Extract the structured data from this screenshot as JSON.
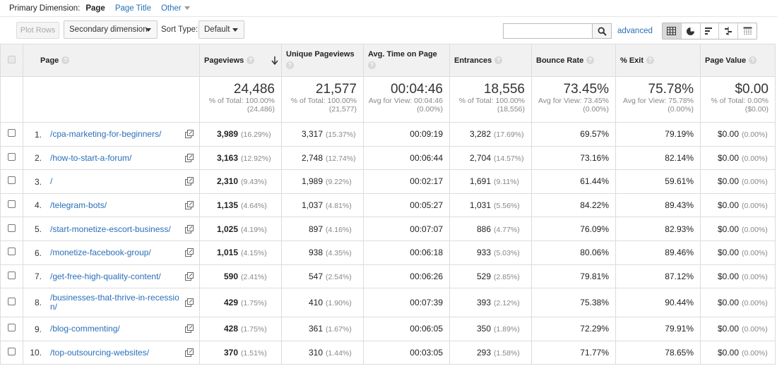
{
  "primary_dimension": {
    "label": "Primary Dimension:",
    "active": "Page",
    "option": "Page Title",
    "other": "Other"
  },
  "toolbar": {
    "plot_rows": "Plot Rows",
    "secondary_dimension": "Secondary dimension",
    "sort_type_label": "Sort Type:",
    "sort_type_value": "Default",
    "search_value": "",
    "advanced": "advanced"
  },
  "columns": {
    "page": "Page",
    "pageviews": "Pageviews",
    "unique_pageviews": "Unique Pageviews",
    "avg_time": "Avg. Time on Page",
    "entrances": "Entrances",
    "bounce_rate": "Bounce Rate",
    "exit": "% Exit",
    "page_value": "Page Value",
    "help": "?"
  },
  "totals": {
    "pageviews": {
      "value": "24,486",
      "line1": "% of Total: 100.00%",
      "line2": "(24,486)"
    },
    "unique_pageviews": {
      "value": "21,577",
      "line1": "% of Total: 100.00%",
      "line2": "(21,577)"
    },
    "avg_time": {
      "value": "00:04:46",
      "line1": "Avg for View: 00:04:46",
      "line2": "(0.00%)"
    },
    "entrances": {
      "value": "18,556",
      "line1": "% of Total: 100.00%",
      "line2": "(18,556)"
    },
    "bounce_rate": {
      "value": "73.45%",
      "line1": "Avg for View: 73.45%",
      "line2": "(0.00%)"
    },
    "exit": {
      "value": "75.78%",
      "line1": "Avg for View: 75.78%",
      "line2": "(0.00%)"
    },
    "page_value": {
      "value": "$0.00",
      "line1": "% of Total: 0.00%",
      "line2": "($0.00)"
    }
  },
  "rows": [
    {
      "n": "1.",
      "url": "/cpa-marketing-for-beginners/",
      "pv": "3,989",
      "pv_pct": "(16.29%)",
      "upv": "3,317",
      "upv_pct": "(15.37%)",
      "time": "00:09:19",
      "ent": "3,282",
      "ent_pct": "(17.69%)",
      "br": "69.57%",
      "exit": "79.19%",
      "val": "$0.00",
      "val_pct": "(0.00%)"
    },
    {
      "n": "2.",
      "url": "/how-to-start-a-forum/",
      "pv": "3,163",
      "pv_pct": "(12.92%)",
      "upv": "2,748",
      "upv_pct": "(12.74%)",
      "time": "00:06:44",
      "ent": "2,704",
      "ent_pct": "(14.57%)",
      "br": "73.16%",
      "exit": "82.14%",
      "val": "$0.00",
      "val_pct": "(0.00%)"
    },
    {
      "n": "3.",
      "url": "/",
      "pv": "2,310",
      "pv_pct": "(9.43%)",
      "upv": "1,989",
      "upv_pct": "(9.22%)",
      "time": "00:02:17",
      "ent": "1,691",
      "ent_pct": "(9.11%)",
      "br": "61.44%",
      "exit": "59.61%",
      "val": "$0.00",
      "val_pct": "(0.00%)"
    },
    {
      "n": "4.",
      "url": "/telegram-bots/",
      "pv": "1,135",
      "pv_pct": "(4.64%)",
      "upv": "1,037",
      "upv_pct": "(4.81%)",
      "time": "00:05:27",
      "ent": "1,031",
      "ent_pct": "(5.56%)",
      "br": "84.22%",
      "exit": "89.43%",
      "val": "$0.00",
      "val_pct": "(0.00%)"
    },
    {
      "n": "5.",
      "url": "/start-monetize-escort-business/",
      "pv": "1,025",
      "pv_pct": "(4.19%)",
      "upv": "897",
      "upv_pct": "(4.16%)",
      "time": "00:07:07",
      "ent": "886",
      "ent_pct": "(4.77%)",
      "br": "76.09%",
      "exit": "82.93%",
      "val": "$0.00",
      "val_pct": "(0.00%)"
    },
    {
      "n": "6.",
      "url": "/monetize-facebook-group/",
      "pv": "1,015",
      "pv_pct": "(4.15%)",
      "upv": "938",
      "upv_pct": "(4.35%)",
      "time": "00:06:18",
      "ent": "933",
      "ent_pct": "(5.03%)",
      "br": "80.06%",
      "exit": "89.46%",
      "val": "$0.00",
      "val_pct": "(0.00%)"
    },
    {
      "n": "7.",
      "url": "/get-free-high-quality-content/",
      "pv": "590",
      "pv_pct": "(2.41%)",
      "upv": "547",
      "upv_pct": "(2.54%)",
      "time": "00:06:26",
      "ent": "529",
      "ent_pct": "(2.85%)",
      "br": "79.81%",
      "exit": "87.12%",
      "val": "$0.00",
      "val_pct": "(0.00%)"
    },
    {
      "n": "8.",
      "url": "/businesses-that-thrive-in-recession/",
      "pv": "429",
      "pv_pct": "(1.75%)",
      "upv": "410",
      "upv_pct": "(1.90%)",
      "time": "00:07:39",
      "ent": "393",
      "ent_pct": "(2.12%)",
      "br": "75.38%",
      "exit": "90.44%",
      "val": "$0.00",
      "val_pct": "(0.00%)"
    },
    {
      "n": "9.",
      "url": "/blog-commenting/",
      "pv": "428",
      "pv_pct": "(1.75%)",
      "upv": "361",
      "upv_pct": "(1.67%)",
      "time": "00:06:05",
      "ent": "350",
      "ent_pct": "(1.89%)",
      "br": "72.29%",
      "exit": "79.91%",
      "val": "$0.00",
      "val_pct": "(0.00%)"
    },
    {
      "n": "10.",
      "url": "/top-outsourcing-websites/",
      "pv": "370",
      "pv_pct": "(1.51%)",
      "upv": "310",
      "upv_pct": "(1.44%)",
      "time": "00:03:05",
      "ent": "293",
      "ent_pct": "(1.58%)",
      "br": "71.77%",
      "exit": "78.65%",
      "val": "$0.00",
      "val_pct": "(0.00%)"
    }
  ]
}
